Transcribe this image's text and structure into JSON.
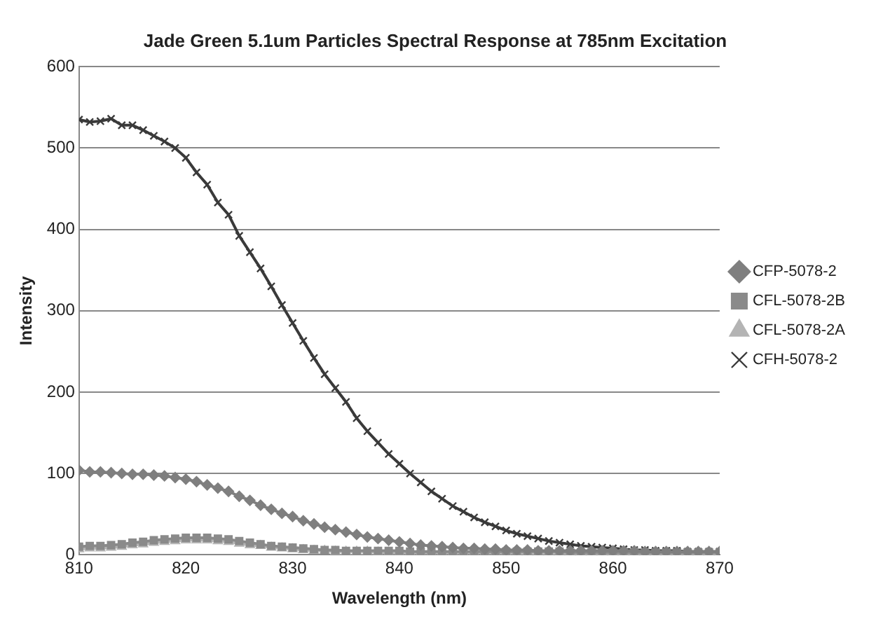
{
  "chart_data": {
    "type": "line",
    "title": "Jade Green 5.1um Particles Spectral Response at 785nm Excitation",
    "xlabel": "Wavelength (nm)",
    "ylabel": "Intensity",
    "x": [
      810,
      811,
      812,
      813,
      814,
      815,
      816,
      817,
      818,
      819,
      820,
      821,
      822,
      823,
      824,
      825,
      826,
      827,
      828,
      829,
      830,
      831,
      832,
      833,
      834,
      835,
      836,
      837,
      838,
      839,
      840,
      841,
      842,
      843,
      844,
      845,
      846,
      847,
      848,
      849,
      850,
      851,
      852,
      853,
      854,
      855,
      856,
      857,
      858,
      859,
      860,
      861,
      862,
      863,
      864,
      865,
      866,
      867,
      868,
      869,
      870
    ],
    "series": [
      {
        "name": "CFP-5078-2",
        "color": "#7f7f7f",
        "marker": "diamond",
        "values": [
          104,
          102,
          102,
          101,
          100,
          99,
          99,
          98,
          97,
          95,
          93,
          90,
          86,
          82,
          78,
          72,
          67,
          61,
          56,
          51,
          47,
          42,
          38,
          34,
          31,
          28,
          25,
          22,
          20,
          18,
          16,
          14,
          12,
          11,
          10,
          9,
          8,
          8,
          7,
          7,
          6,
          6,
          6,
          5,
          5,
          5,
          5,
          5,
          5,
          5,
          5,
          5,
          5,
          4,
          4,
          4,
          4,
          4,
          4,
          4,
          4
        ]
      },
      {
        "name": "CFL-5078-2B",
        "color": "#8a8a8a",
        "marker": "square",
        "values": [
          10,
          11,
          11,
          12,
          13,
          15,
          16,
          18,
          19,
          20,
          21,
          21,
          21,
          20,
          19,
          17,
          15,
          13,
          11,
          10,
          9,
          8,
          7,
          6,
          6,
          5,
          5,
          5,
          5,
          5,
          5,
          4,
          4,
          4,
          4,
          4,
          4,
          4,
          4,
          4,
          4,
          4,
          4,
          4,
          4,
          4,
          3,
          3,
          3,
          3,
          3,
          3,
          3,
          3,
          3,
          3,
          3,
          3,
          3,
          3,
          3
        ]
      },
      {
        "name": "CFL-5078-2A",
        "color": "#b4b4b4",
        "marker": "triangle",
        "values": [
          7,
          8,
          8,
          9,
          10,
          12,
          13,
          15,
          16,
          17,
          18,
          18,
          18,
          17,
          16,
          14,
          12,
          11,
          9,
          8,
          7,
          6,
          5,
          5,
          4,
          4,
          4,
          4,
          3,
          3,
          3,
          3,
          3,
          3,
          3,
          3,
          3,
          3,
          3,
          3,
          3,
          2,
          2,
          2,
          2,
          2,
          2,
          2,
          2,
          2,
          2,
          2,
          2,
          2,
          2,
          2,
          2,
          2,
          2,
          2,
          2
        ]
      },
      {
        "name": "CFH-5078-2",
        "color": "#3a3a3a",
        "marker": "cross",
        "values": [
          535,
          532,
          533,
          536,
          528,
          528,
          522,
          515,
          508,
          500,
          488,
          470,
          455,
          433,
          418,
          392,
          372,
          352,
          330,
          307,
          285,
          263,
          242,
          222,
          205,
          188,
          168,
          152,
          138,
          124,
          112,
          100,
          89,
          78,
          69,
          60,
          53,
          46,
          40,
          35,
          30,
          26,
          23,
          20,
          17,
          15,
          13,
          11,
          10,
          9,
          8,
          7,
          6,
          6,
          5,
          5,
          5,
          4,
          4,
          4,
          4
        ]
      }
    ],
    "xlim": [
      810,
      870
    ],
    "xticks": [
      810,
      820,
      830,
      840,
      850,
      860,
      870
    ],
    "ylim": [
      0,
      600
    ],
    "yticks": [
      0,
      100,
      200,
      300,
      400,
      500,
      600
    ],
    "grid": "y",
    "legend": "right"
  }
}
